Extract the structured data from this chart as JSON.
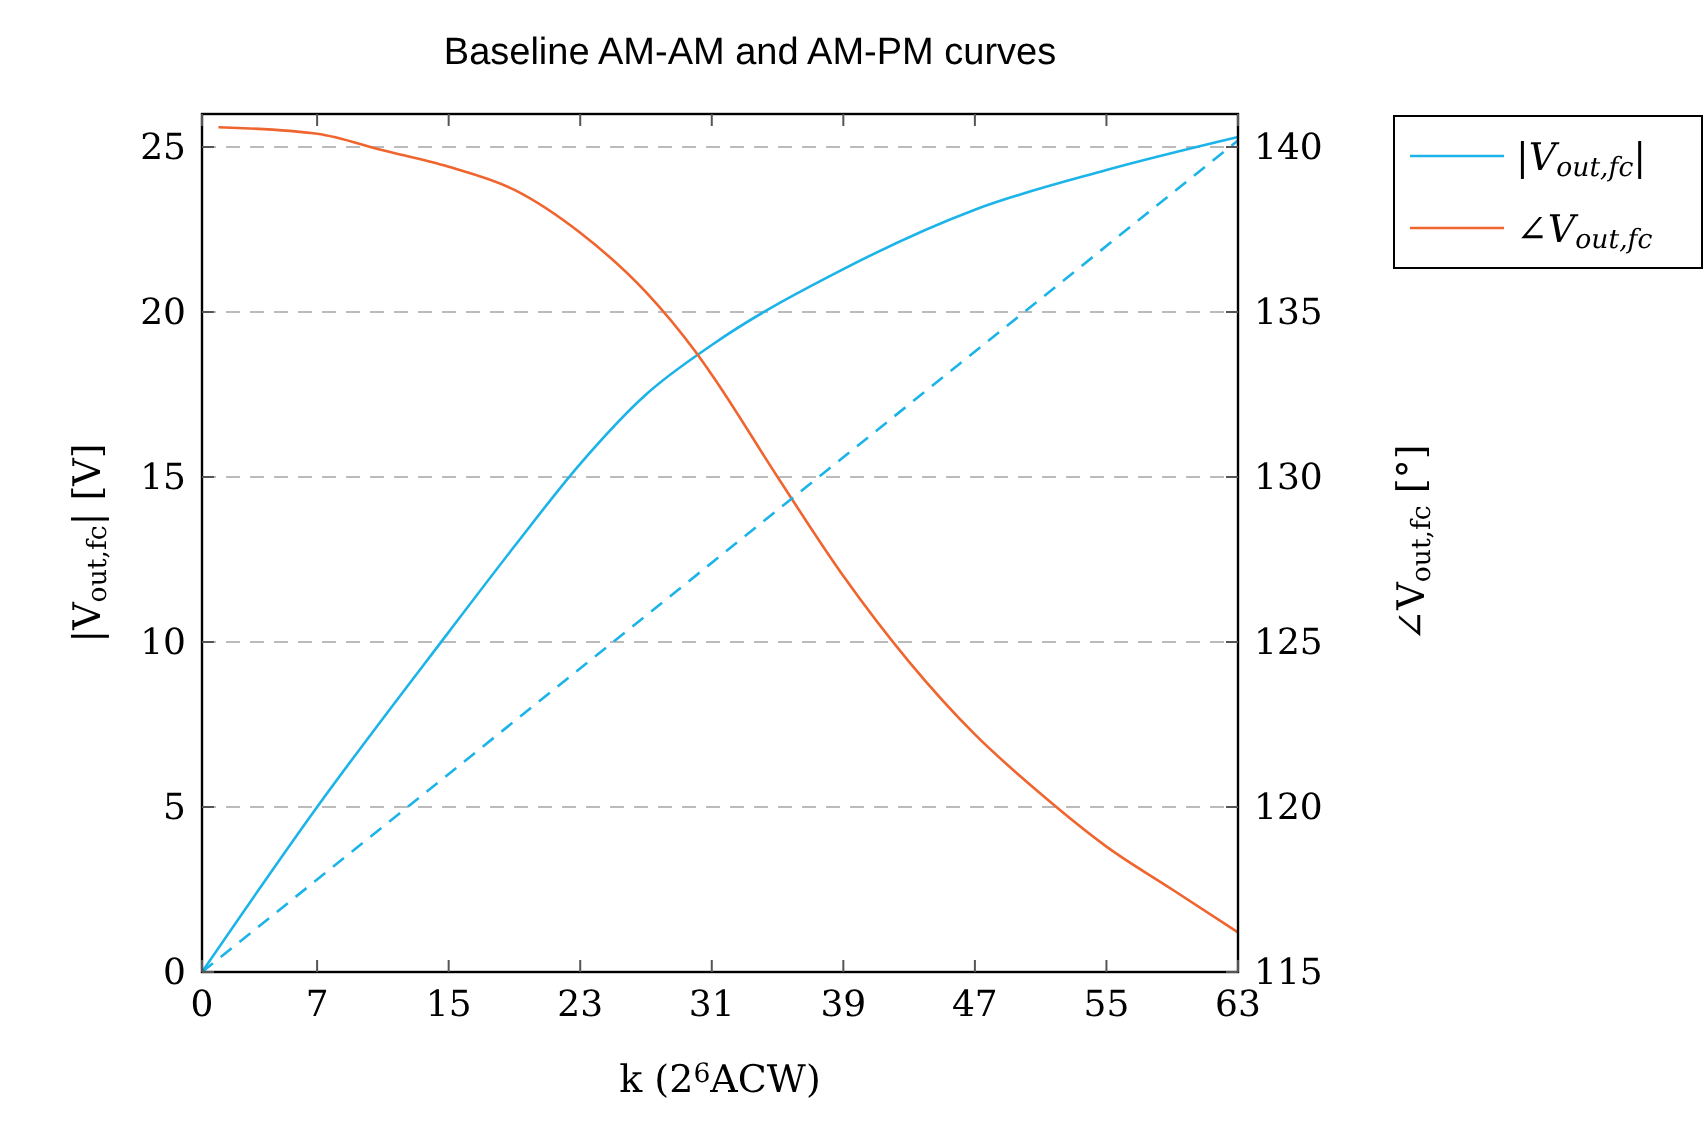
{
  "chart_data": {
    "type": "line",
    "title": "Baseline AM-AM and AM-PM curves",
    "xlabel": "k (2$^{6}$ACW)",
    "ylabel": "|V$_{out,f}$$_{c}$| [V]",
    "y2label": "∠V$_{out,f}$$_{c}$ [°]",
    "xlim": [
      0,
      63
    ],
    "xticks": [
      0,
      7,
      15,
      23,
      31,
      39,
      47,
      55,
      63
    ],
    "ylim": [
      0,
      26
    ],
    "yticks": [
      0,
      5,
      10,
      15,
      20,
      25
    ],
    "y2lim": [
      115,
      141
    ],
    "y2ticks": [
      115,
      120,
      125,
      130,
      135,
      140
    ],
    "grid": "y",
    "legend": "top right",
    "line_style": "solid",
    "series": [
      {
        "name": "|V$_{out,f}$$_{c}$|",
        "color": "#1cb4e8",
        "x": [
          0,
          7,
          15,
          19,
          23,
          27,
          31,
          39,
          47,
          55,
          63
        ],
        "values": [
          0,
          5.0,
          10.3,
          12.9,
          15.4,
          17.5,
          19.0,
          21.3,
          23.1,
          24.3,
          25.3
        ]
      },
      {
        "name": "∠V$_{out,f}$$_{c}$",
        "color": "#f0642e",
        "axis": "y2",
        "x": [
          1,
          7,
          11,
          15,
          19,
          23,
          27,
          30,
          31,
          35,
          39,
          43,
          47,
          51,
          55,
          59,
          63
        ],
        "values": [
          140.6,
          140.4,
          139.9,
          139.4,
          138.7,
          137.4,
          135.6,
          133.8,
          133.1,
          130.0,
          127.0,
          124.4,
          122.2,
          120.4,
          118.8,
          117.5,
          116.2
        ]
      },
      {
        "color": "#1cb4e8",
        "line_style": "dashed",
        "x": [
          0,
          63
        ],
        "values": [
          0,
          25.2
        ]
      }
    ]
  }
}
